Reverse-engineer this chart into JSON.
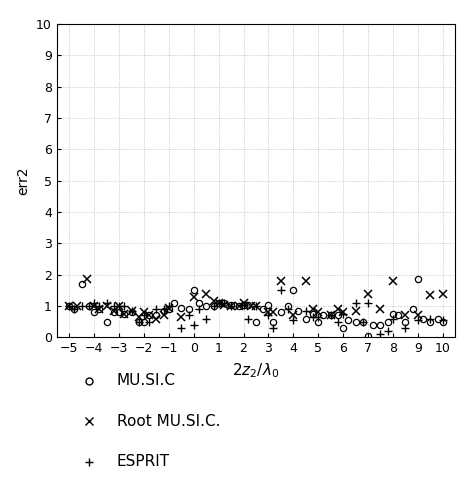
{
  "title": "",
  "xlabel": "$2z_2/\\lambda_0$",
  "ylabel": "err2",
  "xlim": [
    -5.5,
    10.5
  ],
  "ylim": [
    0,
    10
  ],
  "xticks": [
    -5,
    -4,
    -3,
    -2,
    -1,
    0,
    1,
    2,
    3,
    4,
    5,
    6,
    7,
    8,
    9,
    10
  ],
  "yticks": [
    0,
    1,
    2,
    3,
    4,
    5,
    6,
    7,
    8,
    9,
    10
  ],
  "music_x": [
    -5.0,
    -4.8,
    -4.5,
    -4.2,
    -4.0,
    -3.8,
    -3.5,
    -3.2,
    -3.0,
    -2.8,
    -2.5,
    -2.2,
    -2.0,
    -1.8,
    -1.5,
    -1.2,
    -1.0,
    -0.8,
    -0.5,
    -0.2,
    0.0,
    0.2,
    0.5,
    0.8,
    1.0,
    1.2,
    1.5,
    1.8,
    2.0,
    2.2,
    2.5,
    2.8,
    3.0,
    3.2,
    3.5,
    3.8,
    4.0,
    4.2,
    4.5,
    4.8,
    5.0,
    5.2,
    5.5,
    5.8,
    6.0,
    6.2,
    6.5,
    6.8,
    7.0,
    7.2,
    7.5,
    7.8,
    8.0,
    8.2,
    8.5,
    8.8,
    9.0,
    9.2,
    9.5,
    9.8,
    10.0
  ],
  "music_y": [
    1.0,
    0.9,
    1.7,
    1.0,
    0.8,
    0.9,
    0.5,
    0.8,
    0.8,
    0.75,
    0.8,
    0.5,
    0.5,
    0.7,
    0.7,
    0.85,
    0.9,
    1.1,
    0.95,
    0.9,
    1.5,
    1.1,
    1.0,
    1.0,
    1.1,
    1.1,
    1.05,
    1.0,
    1.05,
    1.05,
    0.5,
    0.9,
    1.05,
    0.5,
    0.8,
    1.0,
    1.5,
    0.85,
    0.6,
    0.75,
    0.5,
    0.7,
    0.7,
    0.7,
    0.3,
    0.55,
    0.5,
    0.5,
    0.05,
    0.4,
    0.4,
    0.5,
    0.75,
    0.7,
    0.5,
    0.9,
    1.85,
    0.6,
    0.5,
    0.6,
    0.5
  ],
  "root_music_x": [
    -5.0,
    -4.7,
    -4.3,
    -4.0,
    -3.8,
    -3.5,
    -3.2,
    -3.0,
    -2.8,
    -2.5,
    -2.2,
    -2.0,
    -1.8,
    -1.5,
    -1.2,
    -1.0,
    -0.5,
    0.0,
    0.5,
    0.8,
    1.0,
    1.2,
    1.5,
    1.8,
    2.0,
    2.3,
    2.5,
    3.0,
    3.2,
    3.5,
    4.0,
    4.5,
    4.8,
    5.0,
    5.5,
    5.8,
    6.0,
    6.5,
    7.0,
    7.5,
    8.0,
    8.5,
    9.0,
    9.5,
    10.0
  ],
  "root_music_y": [
    1.0,
    1.0,
    1.85,
    1.0,
    0.9,
    1.0,
    0.85,
    1.0,
    0.75,
    0.85,
    0.65,
    0.8,
    0.7,
    0.6,
    0.7,
    0.95,
    0.65,
    1.3,
    1.4,
    1.15,
    1.1,
    1.05,
    1.0,
    1.0,
    1.1,
    1.0,
    1.0,
    0.8,
    0.8,
    1.8,
    0.7,
    1.8,
    0.9,
    0.8,
    0.7,
    0.9,
    0.8,
    0.85,
    1.4,
    0.9,
    1.8,
    0.7,
    0.7,
    1.35,
    1.4
  ],
  "esprit_x": [
    -5.0,
    -4.8,
    -4.5,
    -4.2,
    -4.0,
    -3.8,
    -3.5,
    -3.2,
    -3.0,
    -2.8,
    -2.5,
    -2.2,
    -2.0,
    -1.8,
    -1.5,
    -1.2,
    -1.0,
    -0.5,
    -0.2,
    0.0,
    0.2,
    0.5,
    0.8,
    1.0,
    1.2,
    1.5,
    2.0,
    2.2,
    2.5,
    3.0,
    3.2,
    3.5,
    3.8,
    4.0,
    4.5,
    4.8,
    5.0,
    5.5,
    5.8,
    6.0,
    6.5,
    6.8,
    7.0,
    7.5,
    7.8,
    8.0,
    8.5,
    9.0,
    9.5,
    10.0
  ],
  "esprit_y": [
    1.0,
    0.9,
    1.0,
    1.0,
    1.1,
    1.0,
    1.1,
    1.0,
    1.0,
    1.0,
    0.85,
    0.5,
    0.7,
    0.5,
    0.9,
    0.9,
    1.0,
    0.3,
    0.7,
    0.4,
    0.9,
    0.6,
    1.0,
    1.1,
    1.1,
    1.0,
    1.05,
    0.6,
    1.0,
    0.7,
    0.3,
    1.5,
    0.9,
    0.55,
    0.85,
    0.65,
    0.65,
    0.7,
    0.5,
    0.75,
    1.1,
    0.5,
    1.1,
    0.1,
    0.2,
    0.6,
    0.3,
    0.55,
    0.6,
    0.55
  ],
  "background_color": "#ffffff",
  "marker_color": "#000000",
  "grid_color": "#aaaaaa",
  "legend_labels": [
    "MU.SI.C",
    "Root MU.SI.C.",
    "ESPRIT"
  ],
  "fig_width": 4.74,
  "fig_height": 4.82,
  "dpi": 100
}
